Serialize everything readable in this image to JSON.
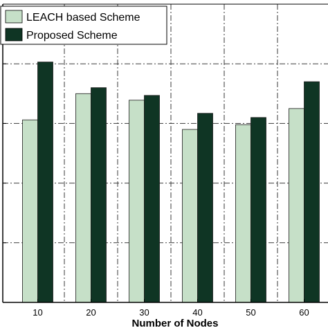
{
  "chart_data": {
    "type": "bar",
    "title": "",
    "xlabel": "Number of Nodes",
    "ylabel": "",
    "categories": [
      "10",
      "20",
      "30",
      "40",
      "50",
      "60"
    ],
    "ylim": [
      0,
      5
    ],
    "grid": true,
    "grid_style": "dash-dot",
    "legend_position": "top-left",
    "series": [
      {
        "name": "LEACH based Scheme",
        "color": "#c6e0c8",
        "values": [
          3.06,
          3.5,
          3.39,
          2.9,
          2.98,
          3.25
        ]
      },
      {
        "name": "Proposed Scheme",
        "color": "#0f3524",
        "values": [
          4.03,
          3.6,
          3.47,
          3.17,
          3.1,
          3.7
        ]
      }
    ]
  }
}
